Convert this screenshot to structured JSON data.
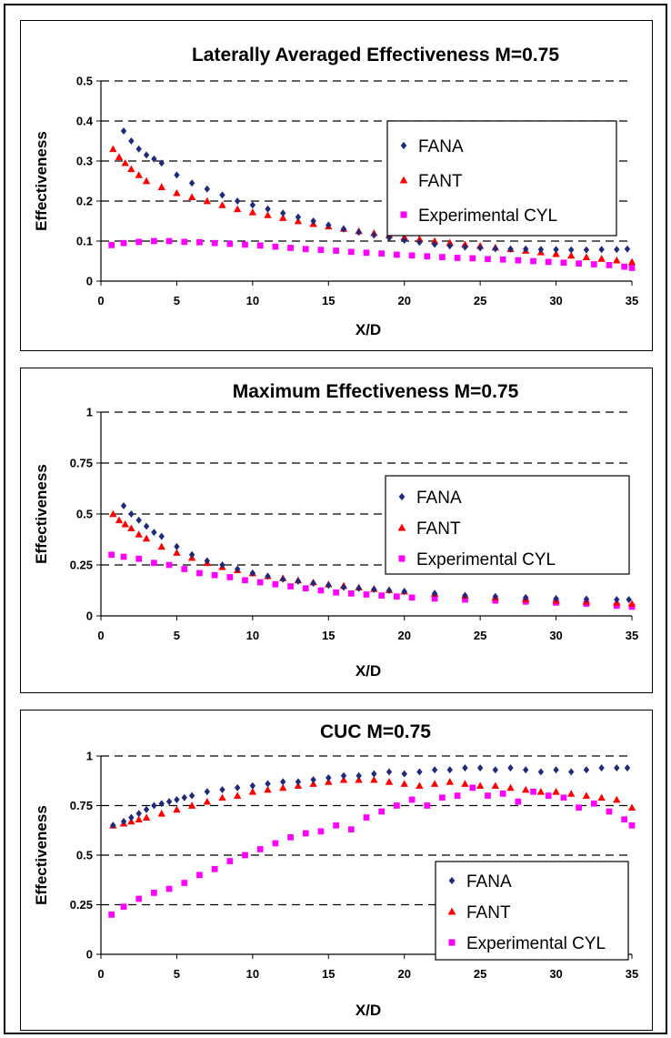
{
  "charts": [
    {
      "id": "lateral",
      "type": "scatter",
      "title": "Laterally Averaged Effectiveness  M=0.75",
      "xlabel": "X/D",
      "ylabel": "Effectiveness",
      "xlim": [
        0,
        35
      ],
      "ylim": [
        0,
        0.5
      ],
      "x_ticks": [
        0,
        5,
        10,
        15,
        20,
        25,
        30,
        35
      ],
      "y_ticks": [
        0,
        0.1,
        0.2,
        0.3,
        0.4,
        0.5
      ],
      "y_tick_labels": [
        "0",
        "0.1",
        "0.2",
        "0.3",
        "0.4",
        "0.5"
      ],
      "grid": "dashed horizontal",
      "legend_position": "right",
      "series": [
        {
          "name": "FANA",
          "color": "#1f2a7a",
          "marker": "diamond",
          "x": [
            1.5,
            2,
            2.5,
            3,
            3.5,
            4,
            5,
            6,
            7,
            8,
            9,
            10,
            11,
            12,
            13,
            14,
            15,
            16,
            17,
            18,
            19,
            20,
            21,
            22,
            23,
            24,
            25,
            26,
            27,
            28,
            29,
            30,
            31,
            32,
            33,
            34,
            34.7
          ],
          "y": [
            0.375,
            0.35,
            0.33,
            0.315,
            0.305,
            0.295,
            0.265,
            0.245,
            0.23,
            0.215,
            0.2,
            0.19,
            0.18,
            0.17,
            0.16,
            0.15,
            0.14,
            0.13,
            0.122,
            0.115,
            0.108,
            0.102,
            0.097,
            0.092,
            0.088,
            0.085,
            0.083,
            0.081,
            0.08,
            0.08,
            0.079,
            0.079,
            0.078,
            0.078,
            0.079,
            0.079,
            0.08
          ]
        },
        {
          "name": "FANT",
          "color": "#ff0000",
          "marker": "triangle",
          "x": [
            0.8,
            1.2,
            1.6,
            2,
            2.5,
            3,
            4,
            5,
            6,
            7,
            8,
            9,
            10,
            11,
            12,
            13,
            14,
            15,
            16,
            17,
            18,
            19,
            20,
            21,
            22,
            23,
            24,
            25,
            26,
            27,
            28,
            29,
            30,
            31,
            32,
            33,
            34,
            35
          ],
          "y": [
            0.33,
            0.31,
            0.295,
            0.28,
            0.265,
            0.25,
            0.235,
            0.22,
            0.21,
            0.2,
            0.19,
            0.18,
            0.172,
            0.165,
            0.158,
            0.15,
            0.143,
            0.137,
            0.131,
            0.125,
            0.12,
            0.115,
            0.11,
            0.105,
            0.1,
            0.096,
            0.092,
            0.088,
            0.084,
            0.08,
            0.076,
            0.072,
            0.068,
            0.064,
            0.06,
            0.056,
            0.052,
            0.048
          ]
        },
        {
          "name": "Experimental CYL",
          "color": "#ff00ff",
          "marker": "square",
          "x": [
            0.7,
            1.5,
            2.5,
            3.5,
            4.5,
            5.5,
            6.5,
            7.5,
            8.5,
            9.5,
            10.5,
            11.5,
            12.5,
            13.5,
            14.5,
            15.5,
            16.5,
            17.5,
            18.5,
            19.5,
            20.5,
            21.5,
            22.5,
            23.5,
            24.5,
            25.5,
            26.5,
            27.5,
            28.5,
            29.5,
            30.5,
            31.5,
            32.5,
            33.5,
            34.5,
            35
          ],
          "y": [
            0.09,
            0.095,
            0.098,
            0.1,
            0.1,
            0.098,
            0.097,
            0.095,
            0.093,
            0.091,
            0.089,
            0.086,
            0.083,
            0.08,
            0.078,
            0.076,
            0.073,
            0.071,
            0.069,
            0.066,
            0.064,
            0.062,
            0.06,
            0.058,
            0.057,
            0.055,
            0.054,
            0.052,
            0.05,
            0.048,
            0.046,
            0.044,
            0.042,
            0.04,
            0.036,
            0.033
          ]
        }
      ]
    },
    {
      "id": "maximum",
      "type": "scatter",
      "title": "Maximum Effectiveness  M=0.75",
      "xlabel": "X/D",
      "ylabel": "Effectiveness",
      "xlim": [
        0,
        35
      ],
      "ylim": [
        0,
        1
      ],
      "x_ticks": [
        0,
        5,
        10,
        15,
        20,
        25,
        30,
        35
      ],
      "y_ticks": [
        0,
        0.25,
        0.5,
        0.75,
        1
      ],
      "y_tick_labels": [
        "0",
        "0.25",
        "0.5",
        "0.75",
        "1"
      ],
      "grid": "dashed horizontal",
      "legend_position": "right",
      "series": [
        {
          "name": "FANA",
          "color": "#1f2a7a",
          "marker": "diamond",
          "x": [
            1.5,
            2,
            2.5,
            3,
            3.5,
            4,
            5,
            6,
            7,
            8,
            9,
            10,
            11,
            12,
            13,
            14,
            15,
            16,
            17,
            18,
            19,
            20,
            22,
            24,
            26,
            28,
            30,
            32,
            34,
            34.8
          ],
          "y": [
            0.54,
            0.5,
            0.47,
            0.44,
            0.41,
            0.39,
            0.34,
            0.3,
            0.27,
            0.25,
            0.23,
            0.21,
            0.195,
            0.18,
            0.17,
            0.16,
            0.15,
            0.14,
            0.135,
            0.13,
            0.125,
            0.12,
            0.11,
            0.1,
            0.095,
            0.09,
            0.085,
            0.082,
            0.08,
            0.08
          ]
        },
        {
          "name": "FANT",
          "color": "#ff0000",
          "marker": "triangle",
          "x": [
            0.8,
            1.2,
            1.6,
            2,
            2.5,
            3,
            4,
            5,
            6,
            7,
            8,
            9,
            10,
            11,
            12,
            13,
            14,
            15,
            16,
            17,
            18,
            19,
            20,
            22,
            24,
            26,
            28,
            30,
            32,
            34,
            35
          ],
          "y": [
            0.5,
            0.47,
            0.45,
            0.43,
            0.4,
            0.38,
            0.34,
            0.31,
            0.285,
            0.26,
            0.24,
            0.225,
            0.21,
            0.195,
            0.185,
            0.175,
            0.165,
            0.155,
            0.148,
            0.14,
            0.133,
            0.127,
            0.12,
            0.11,
            0.1,
            0.09,
            0.082,
            0.075,
            0.07,
            0.065,
            0.06
          ]
        },
        {
          "name": "Experimental CYL",
          "color": "#ff00ff",
          "marker": "square",
          "x": [
            0.7,
            1.5,
            2.5,
            3.5,
            4.5,
            5.5,
            6.5,
            7.5,
            8.5,
            9.5,
            10.5,
            11.5,
            12.5,
            13.5,
            14.5,
            15.5,
            16.5,
            17.5,
            18.5,
            19.5,
            20.5,
            22,
            24,
            26,
            28,
            30,
            32,
            34,
            35
          ],
          "y": [
            0.3,
            0.29,
            0.28,
            0.26,
            0.25,
            0.23,
            0.21,
            0.2,
            0.19,
            0.175,
            0.165,
            0.155,
            0.145,
            0.135,
            0.125,
            0.115,
            0.11,
            0.105,
            0.1,
            0.095,
            0.09,
            0.085,
            0.08,
            0.075,
            0.07,
            0.065,
            0.06,
            0.05,
            0.045
          ]
        }
      ]
    },
    {
      "id": "cuc",
      "type": "scatter",
      "title": "CUC  M=0.75",
      "xlabel": "X/D",
      "ylabel": "Effectiveness",
      "xlim": [
        0,
        35
      ],
      "ylim": [
        0,
        1
      ],
      "x_ticks": [
        0,
        5,
        10,
        15,
        20,
        25,
        30,
        35
      ],
      "y_ticks": [
        0,
        0.25,
        0.5,
        0.75,
        1
      ],
      "y_tick_labels": [
        "0",
        "0.25",
        "0.5",
        "0.75",
        "1"
      ],
      "grid": "dashed horizontal",
      "legend_position": "bottom-right",
      "series": [
        {
          "name": "FANA",
          "color": "#1f2a7a",
          "marker": "diamond",
          "x": [
            0.8,
            1.5,
            2,
            2.5,
            3,
            3.5,
            4,
            4.5,
            5,
            5.5,
            6,
            7,
            8,
            9,
            10,
            11,
            12,
            13,
            14,
            15,
            16,
            17,
            18,
            19,
            20,
            21,
            22,
            23,
            24,
            25,
            26,
            27,
            28,
            29,
            30,
            31,
            32,
            33,
            34,
            34.7
          ],
          "y": [
            0.65,
            0.67,
            0.69,
            0.71,
            0.73,
            0.75,
            0.76,
            0.77,
            0.78,
            0.79,
            0.8,
            0.82,
            0.83,
            0.84,
            0.85,
            0.86,
            0.87,
            0.87,
            0.88,
            0.89,
            0.9,
            0.9,
            0.91,
            0.92,
            0.91,
            0.92,
            0.93,
            0.93,
            0.94,
            0.94,
            0.93,
            0.94,
            0.93,
            0.92,
            0.93,
            0.92,
            0.93,
            0.94,
            0.94,
            0.94
          ]
        },
        {
          "name": "FANT",
          "color": "#ff0000",
          "marker": "triangle",
          "x": [
            0.8,
            1.5,
            2,
            2.5,
            3,
            4,
            5,
            6,
            7,
            8,
            9,
            10,
            11,
            12,
            13,
            14,
            15,
            16,
            17,
            18,
            19,
            20,
            21,
            22,
            23,
            24,
            25,
            26,
            27,
            28,
            29,
            30,
            31,
            32,
            33,
            34,
            35
          ],
          "y": [
            0.65,
            0.66,
            0.67,
            0.68,
            0.69,
            0.71,
            0.73,
            0.75,
            0.77,
            0.79,
            0.8,
            0.82,
            0.83,
            0.84,
            0.85,
            0.86,
            0.87,
            0.88,
            0.88,
            0.88,
            0.87,
            0.86,
            0.85,
            0.86,
            0.87,
            0.86,
            0.85,
            0.85,
            0.84,
            0.83,
            0.82,
            0.82,
            0.81,
            0.8,
            0.79,
            0.78,
            0.74
          ]
        },
        {
          "name": "Experimental CYL",
          "color": "#ff00ff",
          "marker": "square",
          "x": [
            0.7,
            1.5,
            2.5,
            3.5,
            4.5,
            5.5,
            6.5,
            7.5,
            8.5,
            9.5,
            10.5,
            11.5,
            12.5,
            13.5,
            14.5,
            15.5,
            16.5,
            17.5,
            18.5,
            19.5,
            20.5,
            21.5,
            22.5,
            23.5,
            24.5,
            25.5,
            26.5,
            27.5,
            28.5,
            29.5,
            30.5,
            31.5,
            32.5,
            33.5,
            34.5,
            35
          ],
          "y": [
            0.2,
            0.24,
            0.28,
            0.31,
            0.33,
            0.36,
            0.4,
            0.43,
            0.47,
            0.5,
            0.53,
            0.56,
            0.59,
            0.61,
            0.62,
            0.65,
            0.63,
            0.69,
            0.72,
            0.75,
            0.78,
            0.75,
            0.79,
            0.8,
            0.84,
            0.8,
            0.81,
            0.77,
            0.82,
            0.8,
            0.79,
            0.74,
            0.76,
            0.72,
            0.68,
            0.65
          ]
        }
      ]
    }
  ]
}
